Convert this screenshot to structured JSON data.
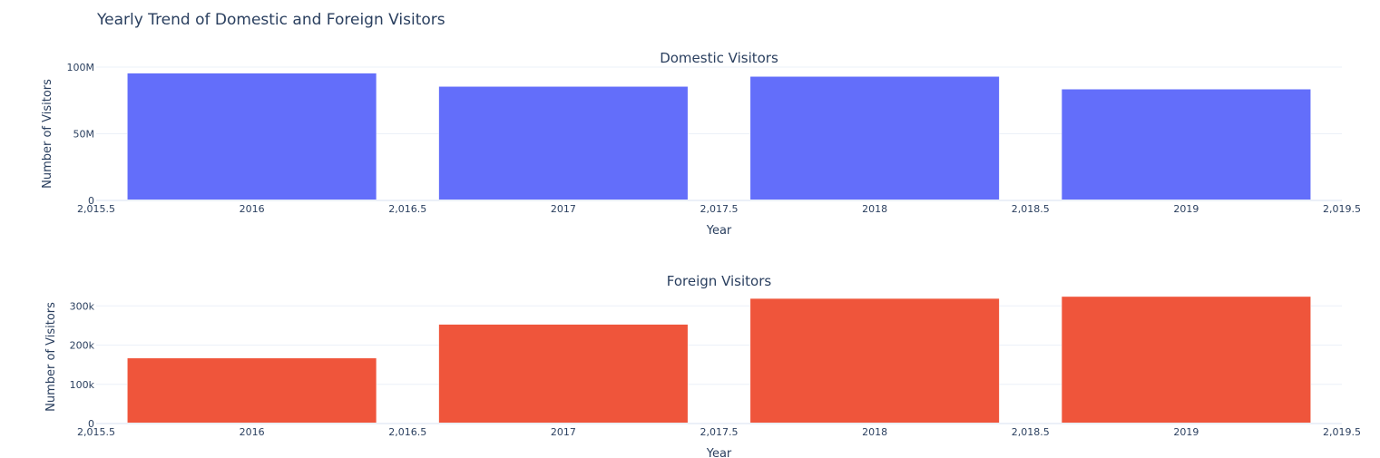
{
  "title": "Yearly Trend of Domestic and Foreign Visitors",
  "chart_data": [
    {
      "type": "bar",
      "title": "Domestic Visitors",
      "xlabel": "Year",
      "ylabel": "Number of Visitors",
      "x": [
        2016,
        2017,
        2018,
        2019
      ],
      "values": [
        95500000,
        85500000,
        93000000,
        83500000
      ],
      "xlim": [
        2015.5,
        2019.5
      ],
      "ylim": [
        0,
        100000000
      ],
      "x_ticks": [
        2015.5,
        2016,
        2016.5,
        2017,
        2017.5,
        2018,
        2018.5,
        2019,
        2019.5
      ],
      "x_tick_labels": [
        "2,015.5",
        "2016",
        "2,016.5",
        "2017",
        "2,017.5",
        "2018",
        "2,018.5",
        "2019",
        "2,019.5"
      ],
      "y_ticks": [
        0,
        50000000,
        100000000
      ],
      "y_tick_labels": [
        "0",
        "50M",
        "100M"
      ],
      "color": "#636efa",
      "grid": true
    },
    {
      "type": "bar",
      "title": "Foreign Visitors",
      "xlabel": "Year",
      "ylabel": "Number of Visitors",
      "x": [
        2016,
        2017,
        2018,
        2019
      ],
      "values": [
        167000,
        253000,
        319000,
        324000
      ],
      "xlim": [
        2015.5,
        2019.5
      ],
      "ylim": [
        0,
        340000
      ],
      "x_ticks": [
        2015.5,
        2016,
        2016.5,
        2017,
        2017.5,
        2018,
        2018.5,
        2019,
        2019.5
      ],
      "x_tick_labels": [
        "2,015.5",
        "2016",
        "2,016.5",
        "2017",
        "2,017.5",
        "2018",
        "2,018.5",
        "2019",
        "2,019.5"
      ],
      "y_ticks": [
        0,
        100000,
        200000,
        300000
      ],
      "y_tick_labels": [
        "0",
        "100k",
        "200k",
        "300k"
      ],
      "color": "#ef553b",
      "grid": true
    }
  ]
}
